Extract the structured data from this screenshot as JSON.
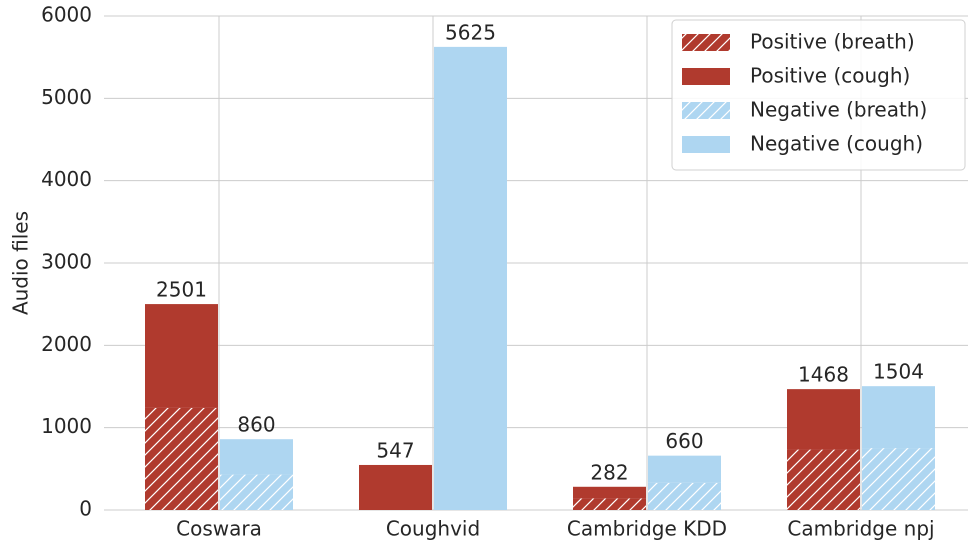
{
  "chart_data": {
    "type": "stacked_grouped_bar",
    "ylabel": "Audio files",
    "categories": [
      "Coswara",
      "Coughvid",
      "Cambridge KDD",
      "Cambridge npj"
    ],
    "series": [
      {
        "name": "Positive (breath)",
        "color": "#b03a2e",
        "hatch": true,
        "stack": 0,
        "values": [
          1240,
          0,
          141,
          734
        ]
      },
      {
        "name": "Positive (cough)",
        "color": "#b03a2e",
        "hatch": false,
        "stack": 0,
        "values": [
          1261,
          547,
          141,
          734
        ]
      },
      {
        "name": "Negative (breath)",
        "color": "#aed6f1",
        "hatch": true,
        "stack": 1,
        "values": [
          430,
          0,
          330,
          752
        ]
      },
      {
        "name": "Negative (cough)",
        "color": "#aed6f1",
        "hatch": false,
        "stack": 1,
        "values": [
          430,
          5625,
          330,
          752
        ]
      }
    ],
    "totals": [
      [
        2501,
        547,
        282,
        1468
      ],
      [
        860,
        5625,
        660,
        1504
      ]
    ],
    "ylim": [
      0,
      6000
    ],
    "yticks": [
      0,
      1000,
      2000,
      3000,
      4000,
      5000,
      6000
    ],
    "grid": true,
    "legend": "upper right"
  }
}
